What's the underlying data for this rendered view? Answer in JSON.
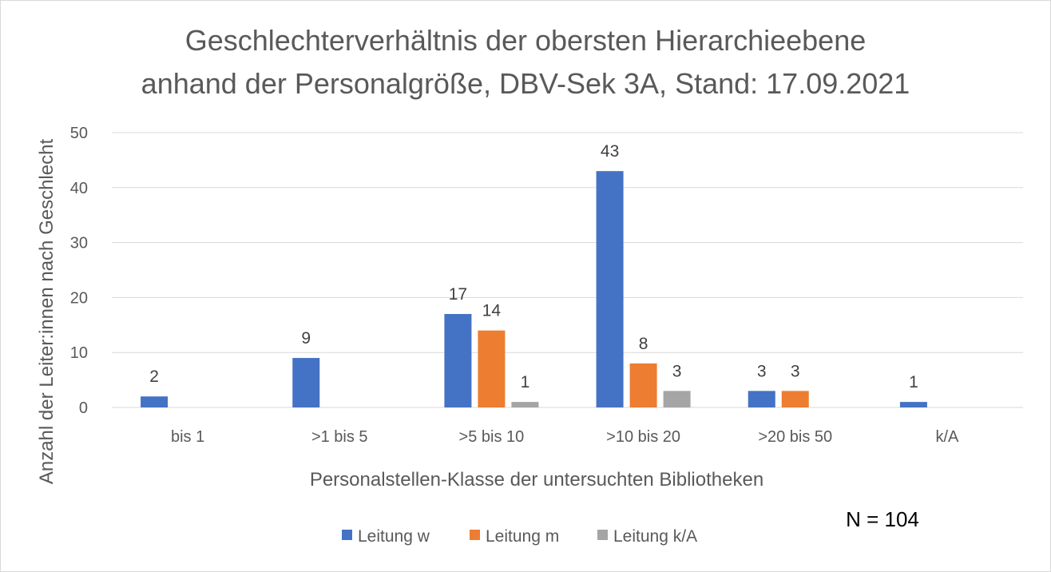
{
  "chart_data": {
    "type": "bar",
    "title_line1": "Geschlechterverhältnis der obersten Hierarchieebene",
    "title_line2": "anhand der Personalgröße, DBV-Sek 3A, Stand: 17.09.2021",
    "xlabel": "Personalstellen-Klasse der untersuchten Bibliotheken",
    "ylabel": "Anzahl der Leiter:innen  nach Geschlecht",
    "ylim": [
      0,
      50
    ],
    "yticks": [
      0,
      10,
      20,
      30,
      40,
      50
    ],
    "grid": true,
    "legend_position": "bottom",
    "categories": [
      "bis 1",
      ">1 bis 5",
      ">5 bis 10",
      ">10 bis 20",
      ">20 bis 50",
      "k/A"
    ],
    "series": [
      {
        "name": "Leitung w",
        "color": "#4472c4",
        "values": [
          2,
          9,
          17,
          43,
          3,
          1
        ]
      },
      {
        "name": "Leitung m",
        "color": "#ed7d31",
        "values": [
          0,
          0,
          14,
          8,
          3,
          0
        ]
      },
      {
        "name": "Leitung k/A",
        "color": "#a5a5a5",
        "values": [
          0,
          0,
          1,
          3,
          0,
          0
        ]
      }
    ],
    "annotation": "N = 104"
  }
}
